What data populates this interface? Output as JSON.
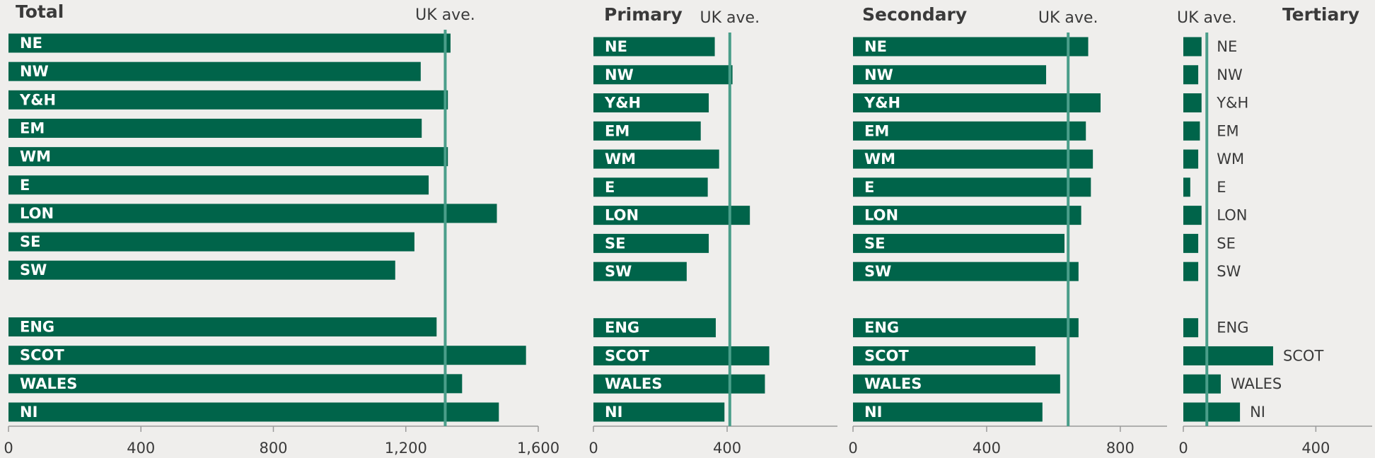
{
  "chart_data": [
    {
      "type": "bar",
      "title": "Total",
      "color": "#00644a",
      "label_position": "inside",
      "categories": [
        "NE",
        "NW",
        "Y&H",
        "EM",
        "WM",
        "E",
        "LON",
        "SE",
        "SW",
        null,
        "ENG",
        "SCOT",
        "WALES",
        "NI"
      ],
      "values": [
        1335,
        1245,
        1327,
        1248,
        1327,
        1269,
        1475,
        1226,
        1168,
        null,
        1293,
        1563,
        1370,
        1481
      ],
      "reference": {
        "label": "UK ave.",
        "value": 1319,
        "color": "#4a9e8a"
      },
      "xlim": [
        0,
        1600
      ],
      "xticks": [
        0,
        400,
        800,
        {
          "value": 1200,
          "label": "1,200"
        },
        {
          "value": 1600,
          "label": "1,600"
        }
      ]
    },
    {
      "type": "bar",
      "title": "Primary",
      "color": "#00644a",
      "label_position": "inside",
      "categories": [
        "NE",
        "NW",
        "Y&H",
        "EM",
        "WM",
        "E",
        "LON",
        "SE",
        "SW",
        null,
        "ENG",
        "SCOT",
        "WALES",
        "NI"
      ],
      "values": [
        363,
        416,
        345,
        321,
        376,
        342,
        468,
        345,
        279,
        null,
        366,
        526,
        513,
        392
      ],
      "reference": {
        "label": "UK ave.",
        "value": 408,
        "color": "#4a9e8a"
      },
      "xlim": [
        0,
        730
      ],
      "xticks": [
        0,
        400
      ]
    },
    {
      "type": "bar",
      "title": "Secondary",
      "color": "#00644a",
      "label_position": "inside",
      "categories": [
        "NE",
        "NW",
        "Y&H",
        "EM",
        "WM",
        "E",
        "LON",
        "SE",
        "SW",
        null,
        "ENG",
        "SCOT",
        "WALES",
        "NI"
      ],
      "values": [
        704,
        578,
        741,
        697,
        718,
        712,
        683,
        633,
        675,
        null,
        675,
        546,
        620,
        567
      ],
      "reference": {
        "label": "UK ave.",
        "value": 644,
        "color": "#4a9e8a"
      },
      "xlim": [
        0,
        940
      ],
      "xticks": [
        0,
        400,
        800
      ]
    },
    {
      "type": "bar",
      "title": "Tertiary",
      "color": "#00644a",
      "label_position": "outside",
      "categories": [
        "NE",
        "NW",
        "Y&H",
        "EM",
        "WM",
        "E",
        "LON",
        "SE",
        "SW",
        null,
        "ENG",
        "SCOT",
        "WALES",
        "NI"
      ],
      "values": [
        55,
        45,
        55,
        50,
        45,
        21,
        55,
        45,
        45,
        null,
        45,
        271,
        113,
        171
      ],
      "reference": {
        "label": "UK ave.",
        "value": 71,
        "color": "#4a9e8a"
      },
      "xlim": [
        0,
        570
      ],
      "xticks": [
        0,
        400
      ]
    }
  ]
}
